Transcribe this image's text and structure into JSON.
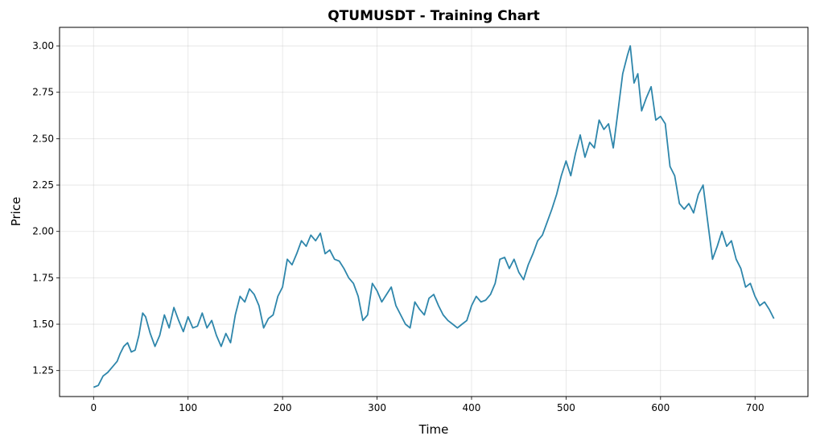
{
  "chart_data": {
    "type": "line",
    "title": "QTUMUSDT - Training Chart",
    "xlabel": "Time",
    "ylabel": "Price",
    "xlim": [
      -36,
      756
    ],
    "ylim": [
      1.11,
      3.1
    ],
    "xticks": [
      "0",
      "100",
      "200",
      "300",
      "400",
      "500",
      "600",
      "700"
    ],
    "yticks": [
      "1.25",
      "1.50",
      "1.75",
      "2.00",
      "2.25",
      "2.50",
      "2.75",
      "3.00"
    ],
    "grid": true,
    "line_color": "#2e86ab",
    "series": [
      {
        "points": [
          [
            0,
            1.16
          ],
          [
            5,
            1.17
          ],
          [
            10,
            1.22
          ],
          [
            15,
            1.24
          ],
          [
            20,
            1.27
          ],
          [
            25,
            1.3
          ],
          [
            28,
            1.34
          ],
          [
            32,
            1.38
          ],
          [
            36,
            1.4
          ],
          [
            40,
            1.35
          ],
          [
            44,
            1.36
          ],
          [
            48,
            1.44
          ],
          [
            52,
            1.56
          ],
          [
            55,
            1.54
          ],
          [
            60,
            1.45
          ],
          [
            65,
            1.38
          ],
          [
            70,
            1.44
          ],
          [
            75,
            1.55
          ],
          [
            80,
            1.48
          ],
          [
            85,
            1.59
          ],
          [
            90,
            1.52
          ],
          [
            95,
            1.46
          ],
          [
            100,
            1.54
          ],
          [
            105,
            1.48
          ],
          [
            110,
            1.49
          ],
          [
            115,
            1.56
          ],
          [
            120,
            1.48
          ],
          [
            125,
            1.52
          ],
          [
            130,
            1.44
          ],
          [
            135,
            1.38
          ],
          [
            140,
            1.45
          ],
          [
            145,
            1.4
          ],
          [
            150,
            1.55
          ],
          [
            155,
            1.65
          ],
          [
            160,
            1.62
          ],
          [
            165,
            1.69
          ],
          [
            170,
            1.66
          ],
          [
            175,
            1.6
          ],
          [
            180,
            1.48
          ],
          [
            185,
            1.53
          ],
          [
            190,
            1.55
          ],
          [
            195,
            1.65
          ],
          [
            200,
            1.7
          ],
          [
            205,
            1.85
          ],
          [
            210,
            1.82
          ],
          [
            215,
            1.88
          ],
          [
            220,
            1.95
          ],
          [
            225,
            1.92
          ],
          [
            230,
            1.98
          ],
          [
            235,
            1.95
          ],
          [
            240,
            1.99
          ],
          [
            245,
            1.88
          ],
          [
            250,
            1.9
          ],
          [
            255,
            1.85
          ],
          [
            260,
            1.84
          ],
          [
            265,
            1.8
          ],
          [
            270,
            1.75
          ],
          [
            275,
            1.72
          ],
          [
            280,
            1.65
          ],
          [
            285,
            1.52
          ],
          [
            290,
            1.55
          ],
          [
            295,
            1.72
          ],
          [
            300,
            1.68
          ],
          [
            305,
            1.62
          ],
          [
            310,
            1.66
          ],
          [
            315,
            1.7
          ],
          [
            320,
            1.6
          ],
          [
            325,
            1.55
          ],
          [
            330,
            1.5
          ],
          [
            335,
            1.48
          ],
          [
            340,
            1.62
          ],
          [
            345,
            1.58
          ],
          [
            350,
            1.55
          ],
          [
            355,
            1.64
          ],
          [
            360,
            1.66
          ],
          [
            365,
            1.6
          ],
          [
            370,
            1.55
          ],
          [
            375,
            1.52
          ],
          [
            380,
            1.5
          ],
          [
            385,
            1.48
          ],
          [
            390,
            1.5
          ],
          [
            395,
            1.52
          ],
          [
            400,
            1.6
          ],
          [
            405,
            1.65
          ],
          [
            410,
            1.62
          ],
          [
            415,
            1.63
          ],
          [
            420,
            1.66
          ],
          [
            425,
            1.72
          ],
          [
            430,
            1.85
          ],
          [
            435,
            1.86
          ],
          [
            440,
            1.8
          ],
          [
            445,
            1.85
          ],
          [
            450,
            1.78
          ],
          [
            455,
            1.74
          ],
          [
            460,
            1.82
          ],
          [
            465,
            1.88
          ],
          [
            470,
            1.95
          ],
          [
            475,
            1.98
          ],
          [
            480,
            2.05
          ],
          [
            485,
            2.12
          ],
          [
            490,
            2.2
          ],
          [
            495,
            2.3
          ],
          [
            500,
            2.38
          ],
          [
            505,
            2.3
          ],
          [
            510,
            2.42
          ],
          [
            515,
            2.52
          ],
          [
            520,
            2.4
          ],
          [
            525,
            2.48
          ],
          [
            530,
            2.45
          ],
          [
            535,
            2.6
          ],
          [
            540,
            2.55
          ],
          [
            545,
            2.58
          ],
          [
            550,
            2.45
          ],
          [
            555,
            2.65
          ],
          [
            560,
            2.85
          ],
          [
            565,
            2.95
          ],
          [
            568,
            3.0
          ],
          [
            572,
            2.8
          ],
          [
            576,
            2.85
          ],
          [
            580,
            2.65
          ],
          [
            585,
            2.72
          ],
          [
            590,
            2.78
          ],
          [
            595,
            2.6
          ],
          [
            600,
            2.62
          ],
          [
            605,
            2.58
          ],
          [
            610,
            2.35
          ],
          [
            615,
            2.3
          ],
          [
            620,
            2.15
          ],
          [
            625,
            2.12
          ],
          [
            630,
            2.15
          ],
          [
            635,
            2.1
          ],
          [
            640,
            2.2
          ],
          [
            645,
            2.25
          ],
          [
            650,
            2.05
          ],
          [
            655,
            1.85
          ],
          [
            660,
            1.92
          ],
          [
            665,
            2.0
          ],
          [
            670,
            1.92
          ],
          [
            675,
            1.95
          ],
          [
            680,
            1.85
          ],
          [
            685,
            1.8
          ],
          [
            690,
            1.7
          ],
          [
            695,
            1.72
          ],
          [
            700,
            1.65
          ],
          [
            705,
            1.6
          ],
          [
            710,
            1.62
          ],
          [
            715,
            1.58
          ],
          [
            720,
            1.53
          ]
        ]
      }
    ]
  }
}
